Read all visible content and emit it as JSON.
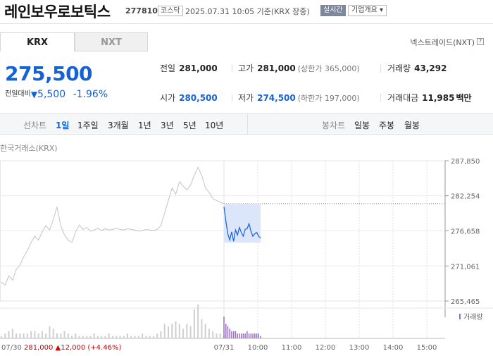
{
  "header": {
    "stock_name": "레인보우로보틱스",
    "code": "277810",
    "market": "코스닥",
    "date": "2025.07.31 10:05 기준(KRX 장중)",
    "realtime_label": "실시간",
    "company_info_label": "기업개요 ▾"
  },
  "tabs": [
    {
      "label": "KRX"
    },
    {
      "label": "NXT"
    }
  ],
  "nxt_link": "넥스트레이드(NXT)",
  "nxt_help": "?",
  "price": {
    "current": "275,500",
    "change_label": "전일대비",
    "change_arrow": "▼",
    "change": "5,500",
    "change_pct": "-1.96%"
  },
  "quote": {
    "prev": {
      "label": "전일",
      "value": "281,000"
    },
    "high": {
      "label": "고가",
      "value": "281,000",
      "limit": "(상한가 365,000)"
    },
    "volume": {
      "label": "거래량",
      "value": "43,292"
    },
    "open": {
      "label": "시가",
      "value": "280,500"
    },
    "low": {
      "label": "저가",
      "value": "274,500",
      "limit": "(하한가 197,000)"
    },
    "amount": {
      "label": "거래대금",
      "value": "11,985",
      "unit": "백만"
    }
  },
  "line_chart": {
    "label": "선차트",
    "periods": [
      {
        "label": "1일",
        "selected": true
      },
      {
        "label": "1주일",
        "selected": false
      },
      {
        "label": "3개월",
        "selected": false
      },
      {
        "label": "1년",
        "selected": false
      },
      {
        "label": "3년",
        "selected": false
      },
      {
        "label": "5년",
        "selected": false
      },
      {
        "label": "10년",
        "selected": false
      }
    ]
  },
  "candle_chart": {
    "label": "봉차트",
    "periods": [
      {
        "label": "일봉"
      },
      {
        "label": "주봉"
      },
      {
        "label": "월봉"
      }
    ]
  },
  "chart_source": "한국거래소(KRX)",
  "volume_label": "거래량",
  "prev_day": {
    "date": "07/30",
    "close": "281,000",
    "arrow": "▲",
    "change": "12,000",
    "pct": "(+4.46%)"
  },
  "colors": {
    "accent": "#1561d6",
    "up": "#d20000",
    "down": "#1561d6",
    "prev_line": "#c4c4c4"
  },
  "chart_data": {
    "type": "line",
    "y_ticks": [
      "287,850",
      "282,254",
      "276,658",
      "271,061",
      "265,465"
    ],
    "ylim": [
      265465,
      287850
    ],
    "x_ticks": [
      "07/31",
      "10:00",
      "11:00",
      "12:00",
      "13:00",
      "14:00",
      "15:00"
    ],
    "reference_line": 281000,
    "series": [
      {
        "values": [
          268500,
          268000,
          269500,
          268800,
          270500,
          271200,
          272500,
          273500,
          274800,
          275800,
          275200,
          276500,
          277500,
          276800,
          278500,
          280500,
          277500,
          276000,
          275200,
          274800,
          276500,
          277600,
          276900,
          277200,
          276600,
          276800,
          277100,
          276700,
          277000,
          276800,
          276900,
          277100,
          276900,
          276800,
          277000,
          276900,
          276800,
          276600,
          276700,
          276900,
          276800,
          276700,
          276900,
          277500,
          279500,
          281500,
          283500,
          282500,
          284500,
          283800,
          283200,
          284000,
          285500,
          286800,
          285500,
          283500,
          282800,
          281800,
          281500,
          281200,
          281000
        ]
      },
      {
        "values": [
          280500,
          278200,
          276200,
          275200,
          276500,
          275000,
          276800,
          276000,
          277200,
          276400,
          275800,
          276900,
          277000,
          277800,
          276600,
          275800,
          276200,
          276400,
          275800,
          275500
        ]
      }
    ],
    "volume": {
      "prev_day": [
        1,
        2,
        3,
        4,
        2,
        2,
        2,
        2,
        3,
        3,
        2,
        3,
        2,
        5,
        4,
        2,
        2,
        3,
        2,
        1,
        2,
        1,
        1,
        1,
        1,
        2,
        1,
        1,
        1,
        2,
        1,
        1,
        1,
        1,
        2,
        1,
        1,
        1,
        2,
        1,
        1,
        1,
        2,
        3,
        6,
        5,
        6,
        7,
        6,
        4,
        6,
        5,
        12,
        14,
        8,
        6,
        4,
        3,
        2,
        2,
        1
      ],
      "today": [
        9,
        6,
        5,
        4,
        3,
        3,
        3,
        2,
        2,
        2,
        2,
        2,
        3,
        2,
        2,
        2,
        2,
        2,
        2,
        1
      ]
    }
  }
}
